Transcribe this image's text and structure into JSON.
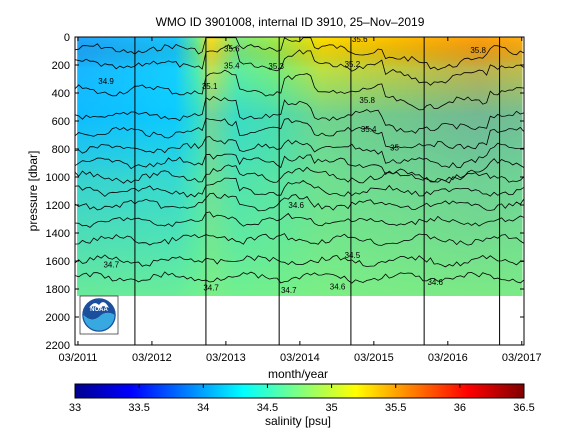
{
  "chart_data": [
    {
      "type": "heatmap",
      "title": "WMO ID 3901008, internal ID 3910, 25–Nov–2019",
      "xlabel": "month/year",
      "ylabel": "pressure [dbar]",
      "x_tick_labels": [
        "03/2011",
        "03/2012",
        "03/2013",
        "03/2014",
        "03/2015",
        "03/2016",
        "03/2017"
      ],
      "x_ticks_years": [
        2011.17,
        2012.17,
        2013.17,
        2014.17,
        2015.17,
        2016.17,
        2017.17
      ],
      "xlim_years": [
        2011.13,
        2017.2
      ],
      "y_tick_labels": [
        "0",
        "200",
        "400",
        "600",
        "800",
        "1000",
        "1200",
        "1400",
        "1600",
        "1800",
        "2000",
        "2200"
      ],
      "y_ticks": [
        0,
        200,
        400,
        600,
        800,
        1000,
        1200,
        1400,
        1600,
        1800,
        2000,
        2200
      ],
      "ylim": [
        2200,
        0
      ],
      "y_inverted": true,
      "data_bottom_pressure": 1850,
      "vertical_lines_years": [
        2011.94,
        2012.9,
        2013.89,
        2014.86,
        2015.85,
        2016.87
      ],
      "contour_labels": [
        {
          "text": "34.7",
          "x": 2011.62,
          "y": 1645
        },
        {
          "text": "34.7",
          "x": 2012.97,
          "y": 1810
        },
        {
          "text": "34.7",
          "x": 2014.02,
          "y": 1830
        },
        {
          "text": "34.6",
          "x": 2014.68,
          "y": 1805
        },
        {
          "text": "34.5",
          "x": 2014.88,
          "y": 1580
        },
        {
          "text": "34.6",
          "x": 2016.0,
          "y": 1770
        },
        {
          "text": "34.6",
          "x": 2014.12,
          "y": 1220
        },
        {
          "text": "35.6",
          "x": 2013.25,
          "y": 105
        },
        {
          "text": "35.4",
          "x": 2013.25,
          "y": 225
        },
        {
          "text": "35.3",
          "x": 2013.85,
          "y": 230
        },
        {
          "text": "35.2",
          "x": 2014.88,
          "y": 215
        },
        {
          "text": "35.6",
          "x": 2014.98,
          "y": 35
        },
        {
          "text": "35.8",
          "x": 2016.58,
          "y": 115
        },
        {
          "text": "35.8",
          "x": 2015.08,
          "y": 470
        },
        {
          "text": "35",
          "x": 2015.45,
          "y": 810
        },
        {
          "text": "35.4",
          "x": 2015.1,
          "y": 680
        },
        {
          "text": "34.9",
          "x": 2011.55,
          "y": 335
        },
        {
          "text": "35.1",
          "x": 2012.95,
          "y": 370
        }
      ],
      "logo": "NOAA"
    },
    {
      "type": "colorbar",
      "label": "salinity [psu]",
      "range": [
        33,
        36.5
      ],
      "tick_labels": [
        "33",
        "33.5",
        "34",
        "34.5",
        "35",
        "35.5",
        "36",
        "36.5"
      ],
      "ticks": [
        33,
        33.5,
        34,
        34.5,
        35,
        35.5,
        36,
        36.5
      ],
      "colormap": [
        "#00008f",
        "#0000ff",
        "#0080ff",
        "#00ffff",
        "#80ff80",
        "#ffff00",
        "#ff8000",
        "#ff0000",
        "#800000"
      ]
    }
  ]
}
